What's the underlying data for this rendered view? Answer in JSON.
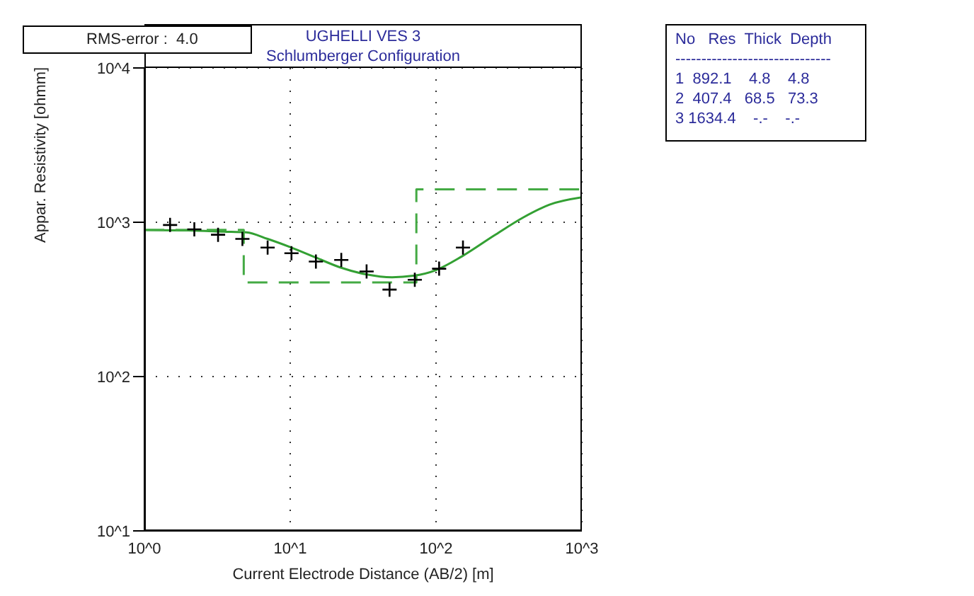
{
  "chart_data": {
    "type": "scatter",
    "title": "UGHELLI VES 3",
    "subtitle": "Schlumberger Configuration",
    "xlabel": "Current Electrode Distance (AB/2) [m]",
    "ylabel": "Appar. Resistivity [ohmm]",
    "annotations": [
      "RMS-error :  4.0",
      "No   Res  Thick  Depth",
      "------------------------------",
      "1  892.1    4.8    4.8",
      "2  407.4   68.5   73.3",
      "3 1634.4    -.-    -.-"
    ],
    "log": "xy",
    "grid": true,
    "xlim": [
      1,
      1000
    ],
    "ylim": [
      10,
      10000
    ],
    "xticks": [
      {
        "value": 1,
        "label": "10^0"
      },
      {
        "value": 10,
        "label": "10^1"
      },
      {
        "value": 100,
        "label": "10^2"
      },
      {
        "value": 1000,
        "label": "10^3"
      }
    ],
    "yticks": [
      {
        "value": 10,
        "label": "10^1"
      },
      {
        "value": 100,
        "label": "10^2"
      },
      {
        "value": 1000,
        "label": "10^3"
      },
      {
        "value": 10000,
        "label": "10^4"
      }
    ],
    "series": [
      {
        "marker": "cross",
        "color": "#000000",
        "x": [
          1.5,
          2.2,
          3.2,
          4.7,
          7,
          10.2,
          15,
          22.4,
          33.4,
          48,
          71.5,
          105,
          153
        ],
        "values": [
          960,
          900,
          830,
          780,
          685,
          630,
          556,
          570,
          480,
          366,
          424,
          500,
          685
        ]
      },
      {
        "type": "line",
        "marker": "none",
        "color": "#33a033",
        "x": [
          1,
          2,
          3.5,
          5,
          7,
          10,
          15,
          22,
          33,
          50,
          70,
          100,
          150,
          250,
          400,
          600,
          1000
        ],
        "values": [
          890,
          885,
          870,
          860,
          780,
          690,
          590,
          510,
          460,
          440,
          450,
          490,
          600,
          820,
          1080,
          1300,
          1450
        ]
      },
      {
        "type": "step",
        "marker": "none",
        "line_style": "dashed",
        "color": "#44aa44",
        "x": [
          1,
          4.8,
          73.3,
          1000
        ],
        "values": [
          892.1,
          407.4,
          1634.4,
          1634.4
        ]
      }
    ]
  }
}
